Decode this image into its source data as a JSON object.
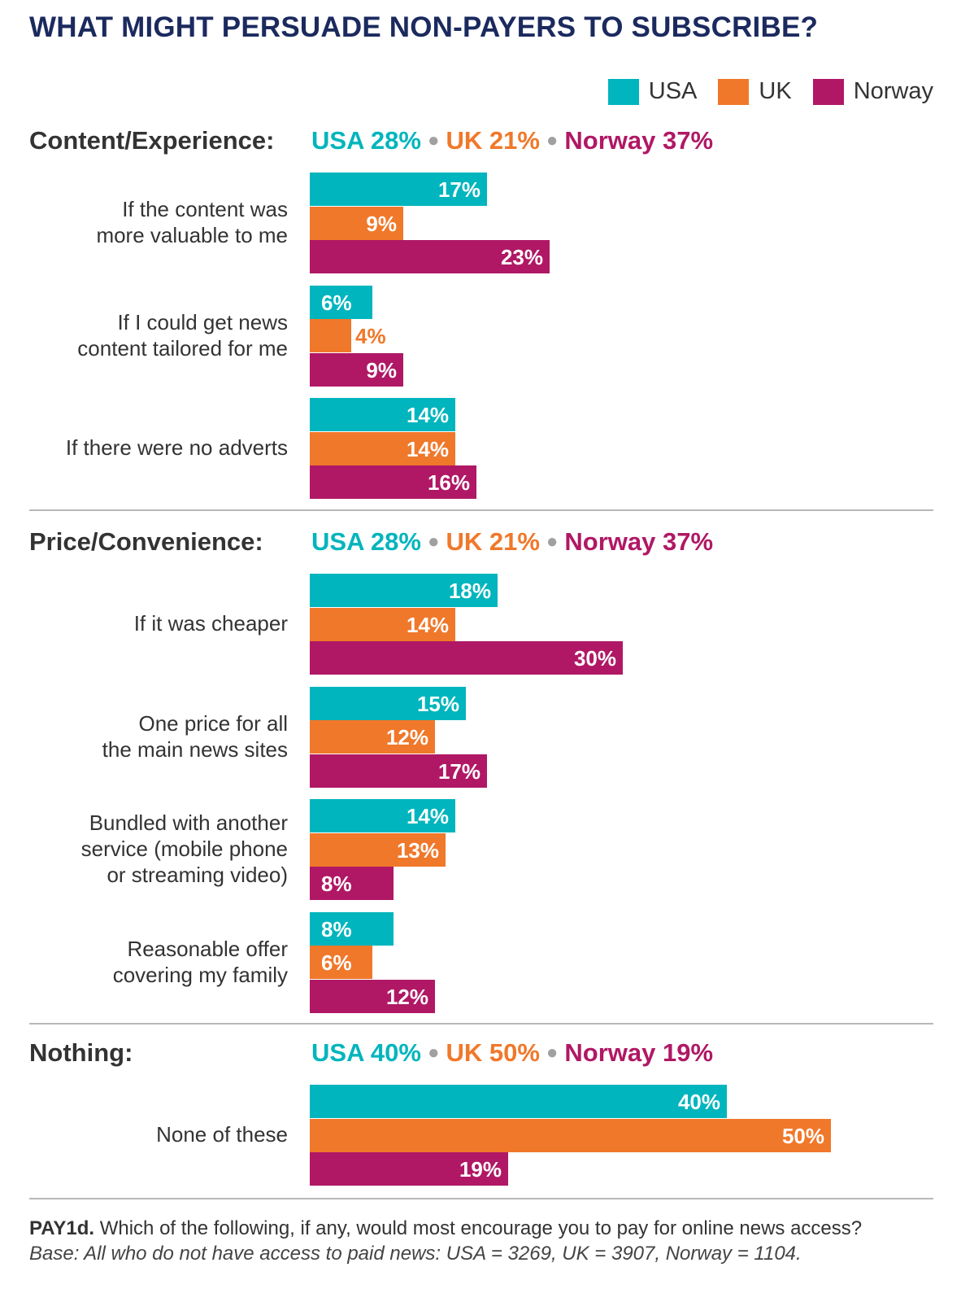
{
  "title": "WHAT MIGHT PERSUADE NON-PAYERS TO SUBSCRIBE?",
  "colors": {
    "USA": "#00b5bd",
    "UK": "#f0782a",
    "Norway": "#b01865"
  },
  "legend": [
    "USA",
    "UK",
    "Norway"
  ],
  "chart_data": {
    "type": "bar",
    "orientation": "horizontal",
    "series_names": [
      "USA",
      "UK",
      "Norway"
    ],
    "value_unit": "%",
    "sections": [
      {
        "title": "Content/Experience:",
        "summary": [
          {
            "country": "USA",
            "value": "28%"
          },
          {
            "country": "UK",
            "value": "21%"
          },
          {
            "country": "Norway",
            "value": "37%"
          }
        ],
        "categories": [
          {
            "label": "If the content was\nmore valuable to me",
            "values": [
              17,
              9,
              23
            ]
          },
          {
            "label": "If I could get news\ncontent tailored for me",
            "values": [
              6,
              4,
              9
            ]
          },
          {
            "label": "If there were no adverts",
            "values": [
              14,
              14,
              16
            ]
          }
        ]
      },
      {
        "title": "Price/Convenience:",
        "summary": [
          {
            "country": "USA",
            "value": "28%"
          },
          {
            "country": "UK",
            "value": "21%"
          },
          {
            "country": "Norway",
            "value": "37%"
          }
        ],
        "categories": [
          {
            "label": "If it was cheaper",
            "values": [
              18,
              14,
              30
            ]
          },
          {
            "label": "One price for all\nthe main news sites",
            "values": [
              15,
              12,
              17
            ]
          },
          {
            "label": "Bundled with another\nservice (mobile phone\nor streaming video)",
            "values": [
              14,
              13,
              8
            ]
          },
          {
            "label": "Reasonable offer\ncovering my family",
            "values": [
              8,
              6,
              12
            ]
          }
        ]
      },
      {
        "title": "Nothing:",
        "summary": [
          {
            "country": "USA",
            "value": "40%"
          },
          {
            "country": "UK",
            "value": "50%"
          },
          {
            "country": "Norway",
            "value": "19%"
          }
        ],
        "categories": [
          {
            "label": "None of these",
            "values": [
              40,
              50,
              19
            ]
          }
        ]
      }
    ]
  },
  "footnote": {
    "code": "PAY1d.",
    "question": "Which of the following, if any, would most encourage you to pay for online news access?",
    "base": "Base: All who do not have access to paid news: USA = 3269, UK = 3907, Norway = 1104."
  }
}
